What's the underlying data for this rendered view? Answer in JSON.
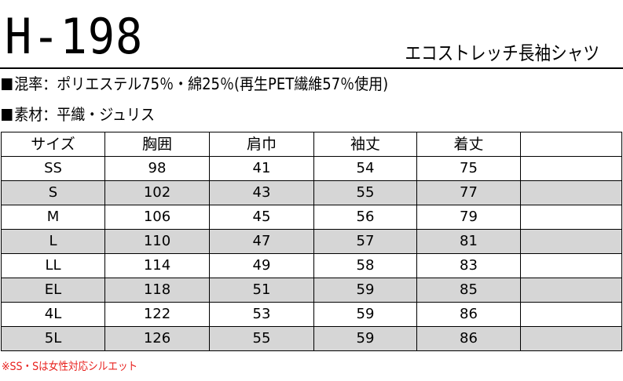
{
  "header": {
    "model": "H-198",
    "product_name": "エコストレッチ長袖シャツ"
  },
  "specs": {
    "blend": "混率：ポリエステル75％・綿25％(再生PET繊維57％使用)",
    "material": "素材：平織・ジュリス"
  },
  "table": {
    "headers": [
      "サイズ",
      "胸囲",
      "肩巾",
      "袖丈",
      "着丈",
      ""
    ],
    "rows": [
      [
        "SS",
        "98",
        "41",
        "54",
        "75",
        ""
      ],
      [
        "S",
        "102",
        "43",
        "55",
        "77",
        ""
      ],
      [
        "M",
        "106",
        "45",
        "56",
        "79",
        ""
      ],
      [
        "L",
        "110",
        "47",
        "57",
        "81",
        ""
      ],
      [
        "LL",
        "114",
        "49",
        "58",
        "83",
        ""
      ],
      [
        "EL",
        "118",
        "51",
        "59",
        "85",
        ""
      ],
      [
        "4L",
        "122",
        "53",
        "59",
        "86",
        ""
      ],
      [
        "5L",
        "126",
        "55",
        "59",
        "86",
        ""
      ]
    ]
  },
  "note": "※SS・Sは女性対応シルエット",
  "colors": {
    "shaded_row": "#d6d6d6",
    "note_text": "#e8211e",
    "text": "#000000"
  }
}
